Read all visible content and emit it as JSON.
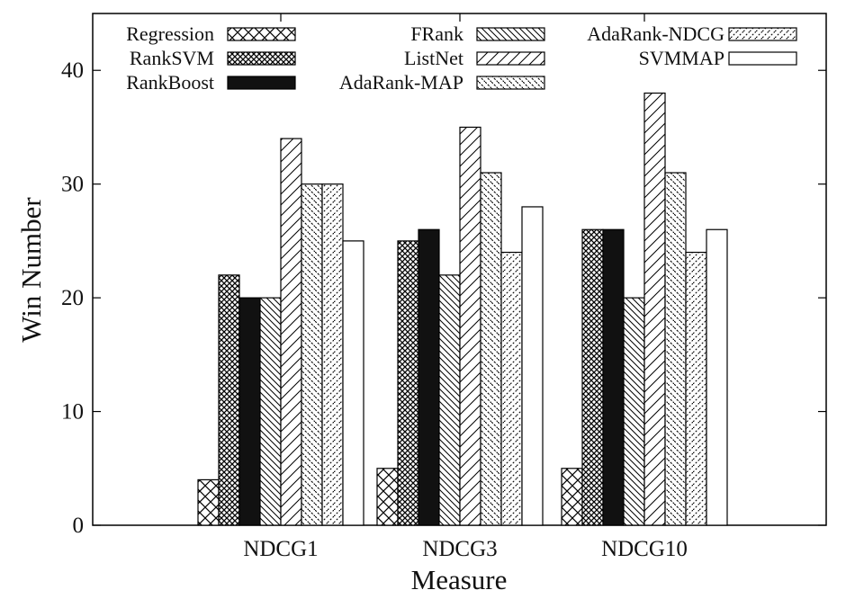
{
  "chart_data": {
    "type": "bar",
    "title": "",
    "xlabel": "Measure",
    "ylabel": "Win Number",
    "categories": [
      "NDCG1",
      "NDCG3",
      "NDCG10"
    ],
    "ylim": [
      0,
      45
    ],
    "yticks": [
      0,
      10,
      20,
      30,
      40
    ],
    "grid": false,
    "legend_position": "top",
    "series": [
      {
        "name": "Regression",
        "values": [
          4,
          5,
          5
        ],
        "pattern": "crosshatch"
      },
      {
        "name": "RankSVM",
        "values": [
          22,
          25,
          26
        ],
        "pattern": "dense-crosshatch"
      },
      {
        "name": "RankBoost",
        "values": [
          20,
          26,
          26
        ],
        "pattern": "solid-black"
      },
      {
        "name": "FRank",
        "values": [
          20,
          22,
          20
        ],
        "pattern": "backslash-hatch"
      },
      {
        "name": "ListNet",
        "values": [
          34,
          35,
          38
        ],
        "pattern": "slash-hatch"
      },
      {
        "name": "AdaRank-MAP",
        "values": [
          30,
          31,
          31
        ],
        "pattern": "dashed-backslash"
      },
      {
        "name": "AdaRank-NDCG",
        "values": [
          30,
          24,
          24
        ],
        "pattern": "dashed-slash"
      },
      {
        "name": "SVMMAP",
        "values": [
          25,
          28,
          26
        ],
        "pattern": "white"
      }
    ]
  }
}
